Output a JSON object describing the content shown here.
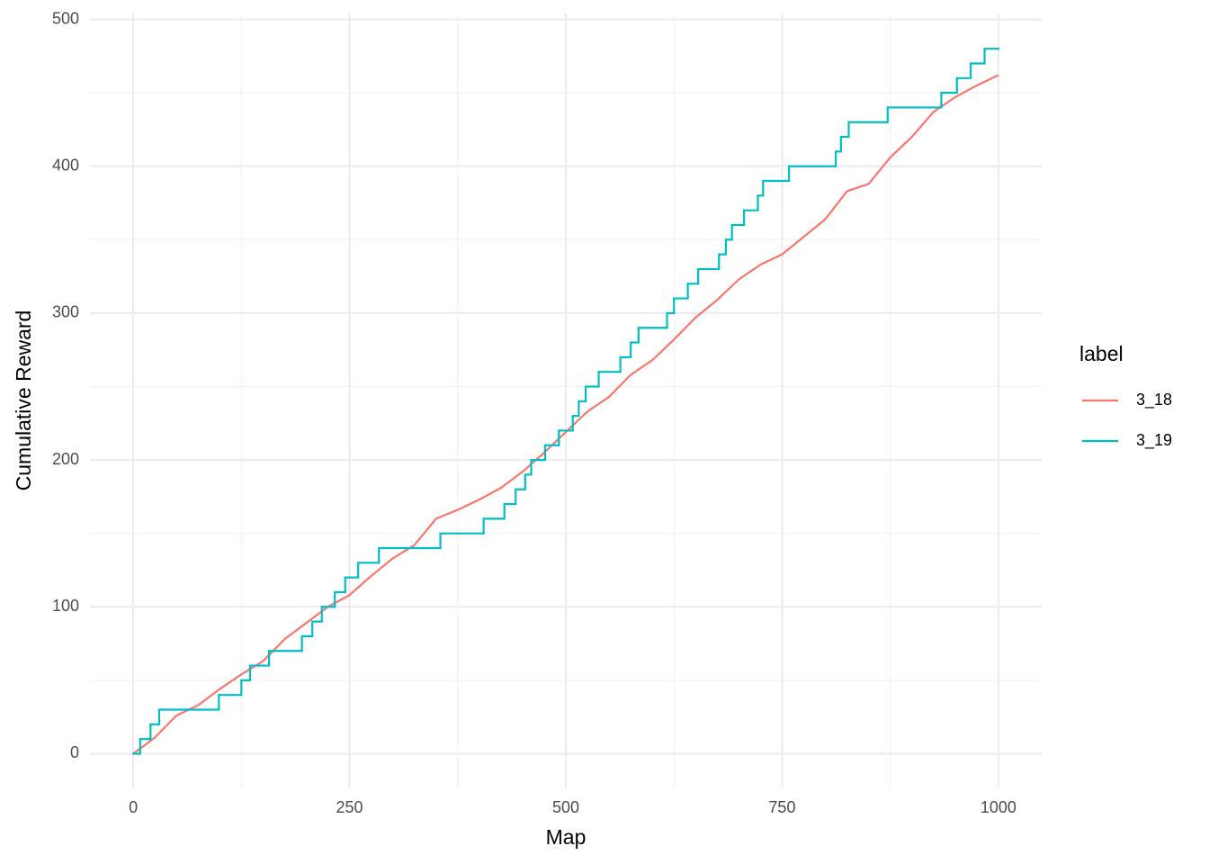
{
  "chart_data": {
    "type": "line",
    "x_label": "Map",
    "y_label": "Cumulative Reward",
    "legend_title": "label",
    "legend_position": "right",
    "xlim": [
      -50,
      1050
    ],
    "ylim": [
      -23,
      504
    ],
    "xticks": [
      0,
      250,
      500,
      750,
      1000
    ],
    "yticks": [
      0,
      100,
      200,
      300,
      400,
      500
    ],
    "x_minor_ticks": [
      125,
      375,
      625,
      875
    ],
    "y_minor_ticks": [
      50,
      150,
      250,
      350,
      450
    ],
    "grid": true,
    "series": [
      {
        "name": "3_18",
        "color": "#F8766D",
        "step": false,
        "x": [
          0,
          25,
          50,
          75,
          100,
          125,
          150,
          175,
          200,
          225,
          250,
          275,
          300,
          325,
          350,
          375,
          400,
          425,
          450,
          475,
          500,
          525,
          550,
          575,
          600,
          625,
          650,
          675,
          700,
          725,
          750,
          775,
          800,
          825,
          850,
          875,
          900,
          925,
          950,
          975,
          1000
        ],
        "values": [
          0,
          11,
          26,
          33,
          44,
          54,
          63,
          78,
          89,
          100,
          108,
          121,
          133,
          142,
          160,
          166,
          173,
          181,
          192,
          205,
          219,
          233,
          243,
          258,
          268,
          282,
          297,
          309,
          323,
          333,
          340,
          352,
          364,
          383,
          388,
          406,
          420,
          437,
          447,
          455,
          462
        ]
      },
      {
        "name": "3_19",
        "color": "#00BFC4",
        "step": true,
        "x": [
          0,
          8,
          20,
          30,
          99,
          125,
          135,
          157,
          195,
          207,
          218,
          233,
          245,
          260,
          284,
          355,
          405,
          429,
          442,
          453,
          460,
          476,
          492,
          508,
          515,
          523,
          538,
          563,
          575,
          584,
          617,
          625,
          641,
          653,
          677,
          685,
          692,
          706,
          722,
          728,
          758,
          812,
          818,
          827,
          872,
          934,
          952,
          968,
          984,
          1000
        ],
        "values": [
          0,
          10,
          20,
          30,
          40,
          50,
          60,
          70,
          80,
          90,
          100,
          110,
          120,
          130,
          140,
          150,
          160,
          170,
          180,
          190,
          200,
          210,
          220,
          230,
          240,
          250,
          260,
          270,
          280,
          290,
          300,
          310,
          320,
          330,
          340,
          350,
          360,
          370,
          380,
          390,
          400,
          410,
          420,
          430,
          440,
          450,
          460,
          470,
          480,
          480
        ]
      }
    ]
  }
}
